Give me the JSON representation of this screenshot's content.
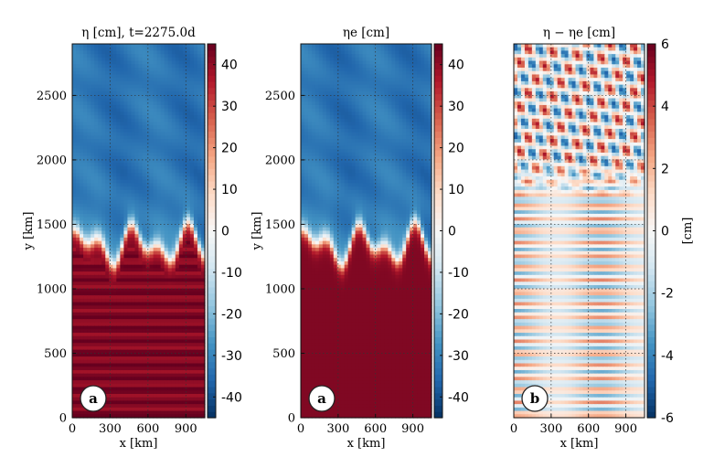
{
  "chart_data": [
    {
      "type": "heatmap",
      "title": "η [cm], t=2275.0d",
      "xlabel": "x [km]",
      "ylabel": "y [km]",
      "xlim": [
        0,
        1050
      ],
      "ylim": [
        0,
        2900
      ],
      "xticks": [
        0,
        300,
        600,
        900
      ],
      "yticks": [
        0,
        500,
        1000,
        1500,
        2000,
        2500
      ],
      "grid": true,
      "panel_label": "a",
      "colorbar": {
        "min": -45,
        "max": 45,
        "ticks": [
          -40,
          -30,
          -20,
          -10,
          0,
          10,
          20,
          30,
          40
        ],
        "label": ""
      },
      "colormap": "RdBu_r",
      "field": {
        "front_y": 1350,
        "front_amp": 180,
        "north_value": -30,
        "south_value": 42,
        "south_stripes": true
      }
    },
    {
      "type": "heatmap",
      "title": "ηe [cm]",
      "xlabel": "x [km]",
      "ylabel": "y [km]",
      "xlim": [
        0,
        1050
      ],
      "ylim": [
        0,
        2900
      ],
      "xticks": [
        0,
        300,
        600,
        900
      ],
      "yticks": [
        0,
        500,
        1000,
        1500,
        2000,
        2500
      ],
      "grid": true,
      "panel_label": "a",
      "colorbar": {
        "min": -45,
        "max": 45,
        "ticks": [
          -40,
          -30,
          -20,
          -10,
          0,
          10,
          20,
          30,
          40
        ],
        "label": ""
      },
      "colormap": "RdBu_r",
      "field": {
        "front_y": 1350,
        "front_amp": 180,
        "north_value": -30,
        "south_value": 42,
        "south_stripes": false
      }
    },
    {
      "type": "heatmap",
      "title": "η − ηe [cm]",
      "xlabel": "x [km]",
      "ylabel": "",
      "xlim": [
        0,
        1050
      ],
      "ylim": [
        0,
        2900
      ],
      "xticks": [
        0,
        300,
        600,
        900
      ],
      "yticks": [],
      "grid": true,
      "panel_label": "b",
      "colorbar": {
        "min": -6,
        "max": 6,
        "ticks": [
          -6,
          -4,
          -2,
          0,
          2,
          4,
          6
        ],
        "label": "[cm]"
      },
      "colormap": "RdBu_r",
      "field": {
        "difference": true,
        "stripe_amp": 3,
        "north_eddy_amp": 5
      }
    }
  ]
}
